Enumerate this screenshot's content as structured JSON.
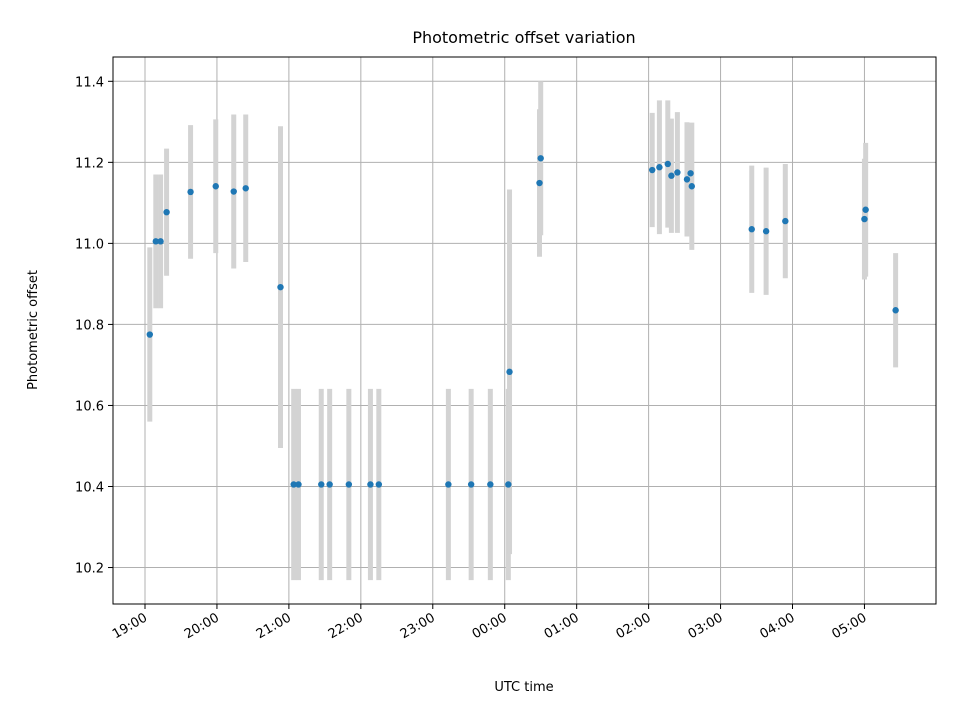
{
  "chart_data": {
    "type": "scatter",
    "title": "Photometric offset variation",
    "xlabel": "UTC time",
    "ylabel": "Photometric offset",
    "xlim": [
      "19:00",
      "05:58"
    ],
    "ylim": [
      10.11,
      11.46
    ],
    "grid": true,
    "legend": false,
    "x_ticks": [
      "19:00",
      "20:00",
      "21:00",
      "22:00",
      "23:00",
      "00:00",
      "01:00",
      "02:00",
      "03:00",
      "04:00",
      "05:00"
    ],
    "y_ticks": [
      10.2,
      10.4,
      10.6,
      10.8,
      11.0,
      11.2,
      11.4
    ],
    "y_tick_labels": [
      "10.2",
      "10.4",
      "10.6",
      "10.8",
      "11.0",
      "11.2",
      "11.4"
    ],
    "marker_color": "#1f77b4",
    "errorbar_color": "#d3d3d3",
    "points": [
      {
        "x": "19:04",
        "y": 10.775,
        "err": 0.215
      },
      {
        "x": "19:09",
        "y": 11.005,
        "err": 0.165
      },
      {
        "x": "19:13",
        "y": 11.005,
        "err": 0.165
      },
      {
        "x": "19:18",
        "y": 11.077,
        "err": 0.157
      },
      {
        "x": "19:38",
        "y": 11.127,
        "err": 0.165
      },
      {
        "x": "19:59",
        "y": 11.141,
        "err": 0.165
      },
      {
        "x": "20:14",
        "y": 11.128,
        "err": 0.19
      },
      {
        "x": "20:24",
        "y": 11.136,
        "err": 0.182
      },
      {
        "x": "20:53",
        "y": 10.892,
        "err": 0.397
      },
      {
        "x": "21:04",
        "y": 10.405,
        "err": 0.236
      },
      {
        "x": "21:08",
        "y": 10.405,
        "err": 0.236
      },
      {
        "x": "21:27",
        "y": 10.405,
        "err": 0.236
      },
      {
        "x": "21:34",
        "y": 10.405,
        "err": 0.236
      },
      {
        "x": "21:50",
        "y": 10.405,
        "err": 0.236
      },
      {
        "x": "22:08",
        "y": 10.405,
        "err": 0.236
      },
      {
        "x": "22:15",
        "y": 10.405,
        "err": 0.236
      },
      {
        "x": "23:13",
        "y": 10.405,
        "err": 0.236
      },
      {
        "x": "23:32",
        "y": 10.405,
        "err": 0.236
      },
      {
        "x": "23:48",
        "y": 10.405,
        "err": 0.236
      },
      {
        "x": "00:03",
        "y": 10.405,
        "err": 0.236
      },
      {
        "x": "00:04",
        "y": 10.683,
        "err": 0.45
      },
      {
        "x": "00:29",
        "y": 11.149,
        "err": 0.182
      },
      {
        "x": "00:30",
        "y": 11.21,
        "err": 0.19
      },
      {
        "x": "02:03",
        "y": 11.181,
        "err": 0.141
      },
      {
        "x": "02:09",
        "y": 11.188,
        "err": 0.165
      },
      {
        "x": "02:16",
        "y": 11.196,
        "err": 0.157
      },
      {
        "x": "02:19",
        "y": 11.167,
        "err": 0.141
      },
      {
        "x": "02:24",
        "y": 11.175,
        "err": 0.149
      },
      {
        "x": "02:32",
        "y": 11.158,
        "err": 0.141
      },
      {
        "x": "02:35",
        "y": 11.173,
        "err": 0.124
      },
      {
        "x": "02:36",
        "y": 11.141,
        "err": 0.157
      },
      {
        "x": "03:26",
        "y": 11.035,
        "err": 0.157
      },
      {
        "x": "03:38",
        "y": 11.03,
        "err": 0.157
      },
      {
        "x": "03:54",
        "y": 11.055,
        "err": 0.141
      },
      {
        "x": "05:00",
        "y": 11.06,
        "err": 0.149
      },
      {
        "x": "05:01",
        "y": 11.083,
        "err": 0.165
      },
      {
        "x": "05:26",
        "y": 10.835,
        "err": 0.141
      }
    ]
  }
}
